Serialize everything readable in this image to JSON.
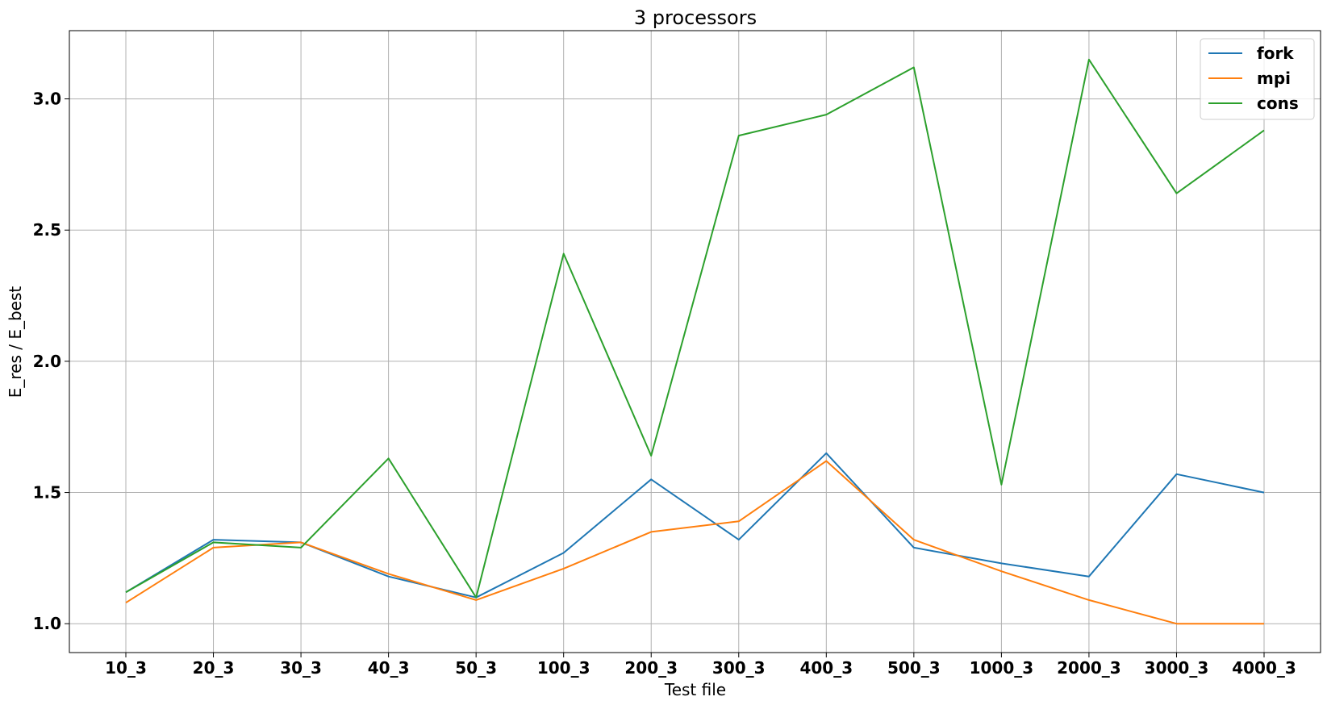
{
  "chart_data": {
    "type": "line",
    "title": "3 processors",
    "xlabel": "Test file",
    "ylabel": "E_res / E_best",
    "categories": [
      "10_3",
      "20_3",
      "30_3",
      "40_3",
      "50_3",
      "100_3",
      "200_3",
      "300_3",
      "400_3",
      "500_3",
      "1000_3",
      "2000_3",
      "3000_3",
      "4000_3"
    ],
    "yticks": [
      "1.0",
      "1.5",
      "2.0",
      "2.5",
      "3.0"
    ],
    "ylim": [
      0.89,
      3.26
    ],
    "grid": true,
    "legend_position": "top-right",
    "series": [
      {
        "name": "fork",
        "color": "#1f77b4",
        "values": [
          1.12,
          1.32,
          1.31,
          1.18,
          1.1,
          1.27,
          1.55,
          1.32,
          1.65,
          1.29,
          1.23,
          1.18,
          1.57,
          1.5
        ]
      },
      {
        "name": "mpi",
        "color": "#ff7f0e",
        "values": [
          1.08,
          1.29,
          1.31,
          1.19,
          1.09,
          1.21,
          1.35,
          1.39,
          1.62,
          1.32,
          1.2,
          1.09,
          1.0,
          1.0
        ]
      },
      {
        "name": "cons",
        "color": "#2ca02c",
        "values": [
          1.12,
          1.31,
          1.29,
          1.63,
          1.1,
          2.41,
          1.64,
          2.86,
          2.94,
          3.12,
          1.53,
          3.15,
          2.64,
          2.88
        ]
      }
    ]
  }
}
